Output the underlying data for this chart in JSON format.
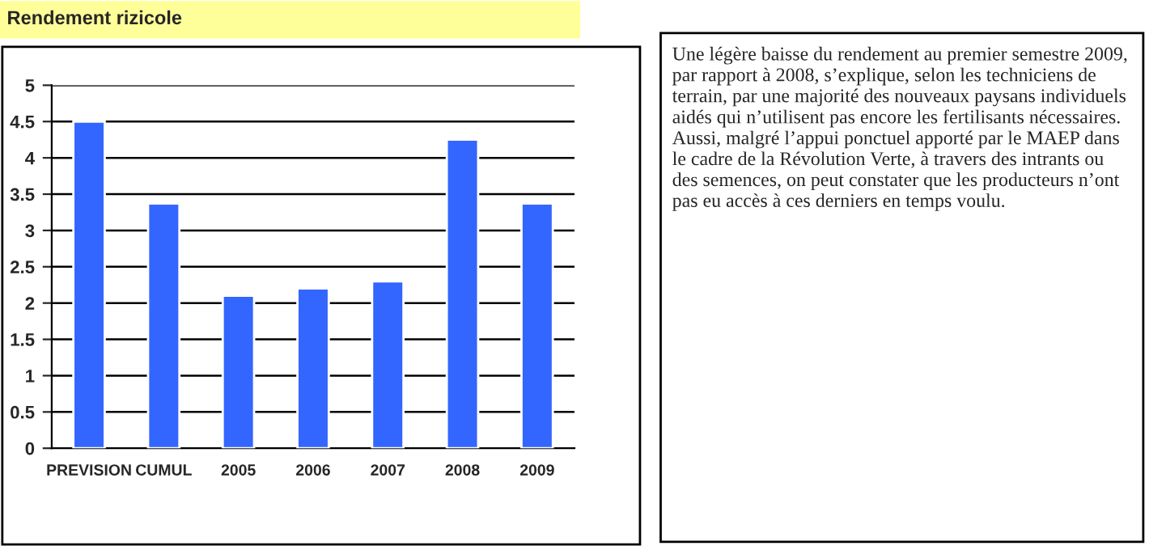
{
  "chart_data": {
    "type": "bar",
    "title": "Rendement rizicole",
    "categories": [
      "PREVISION",
      "CUMUL",
      "2005",
      "2006",
      "2007",
      "2008",
      "2009"
    ],
    "values": [
      4.5,
      3.37,
      2.1,
      2.2,
      2.3,
      4.25,
      3.37
    ],
    "color": "#3366ff",
    "ylim": [
      0,
      5
    ],
    "yticks": [
      0,
      0.5,
      1,
      1.5,
      2,
      2.5,
      3,
      3.5,
      4,
      4.5,
      5
    ],
    "grid": "y",
    "annotations": [
      "Une légère baisse du rendement au premier semestre 2009, par rapport à 2008, s’explique, selon les techniciens de terrain, par une majorité des nouveaux paysans individuels aidés qui n’utilisent pas encore les fertilisants nécessaires.  Aussi, malgré l’appui ponctuel apporté par le MAEP dans le cadre de la Révolution Verte, à travers des intrants ou des semences, on peut constater que les producteurs n’ont pas eu accès à ces derniers en temps voulu."
    ]
  }
}
